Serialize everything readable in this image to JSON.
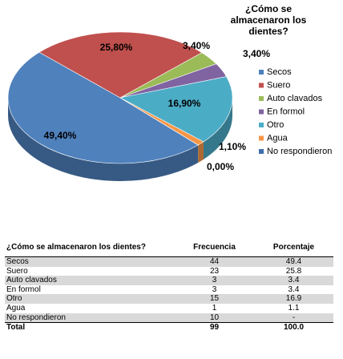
{
  "chart_data": {
    "type": "pie",
    "title": "¿Cómo se almacenaron los dientes?",
    "categories": [
      "Secos",
      "Suero",
      "Auto clavados",
      "En formol",
      "Otro",
      "Agua",
      "No respondieron"
    ],
    "values": [
      49.4,
      25.8,
      3.4,
      3.4,
      16.9,
      1.1,
      0
    ],
    "value_labels": [
      "49,40%",
      "25,80%",
      "3,40%",
      "3,40%",
      "16,90%",
      "1,10%",
      "0,00%"
    ],
    "colors": [
      "#4f81bd",
      "#c0504d",
      "#9bbb59",
      "#8064a2",
      "#4bacc6",
      "#f79646",
      "#3f6fae"
    ],
    "legend": "right"
  },
  "table": {
    "header": [
      "¿Cómo se almacenaron los dientes?",
      "Frecuencia",
      "Porcentaje"
    ],
    "rows": [
      [
        "Secos",
        "44",
        "49.4"
      ],
      [
        "Suero",
        "23",
        "25.8"
      ],
      [
        "Auto clavados",
        "3",
        "3.4"
      ],
      [
        "En formol",
        "3",
        "3.4"
      ],
      [
        "Otro",
        "15",
        "16.9"
      ],
      [
        "Agua",
        "1",
        "1.1"
      ],
      [
        "No respondieron",
        "10",
        "-"
      ],
      [
        "Total",
        "99",
        "100.0"
      ]
    ]
  }
}
